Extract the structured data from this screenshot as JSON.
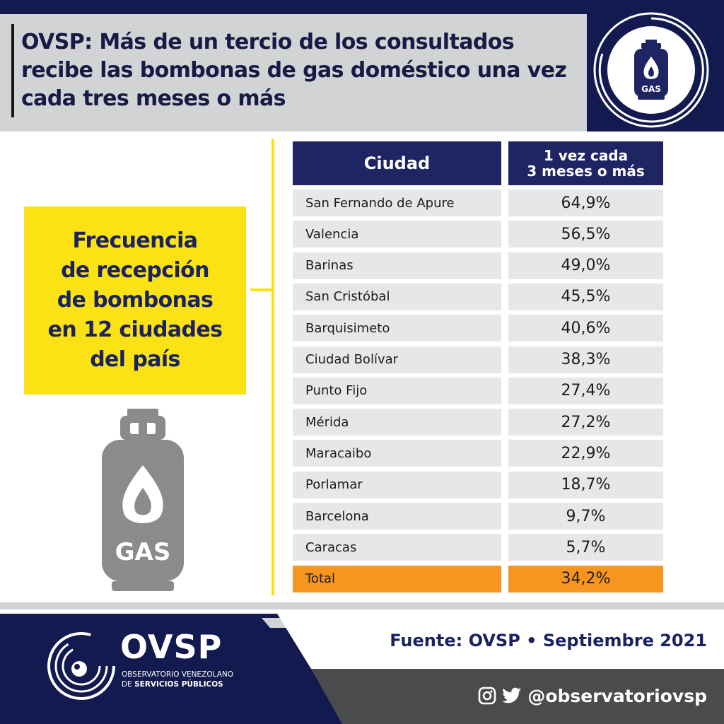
{
  "header": {
    "title": "OVSP: Más de un tercio de los consultados recibe las bombonas de gas doméstico una vez cada tres meses o más",
    "badge_label": "GAS"
  },
  "left_panel": {
    "box_text": "Frecuencia\nde recepción\nde bombonas\nen 12 ciudades\ndel país",
    "tank_label": "GAS"
  },
  "chart_data": {
    "type": "table",
    "columns": [
      "Ciudad",
      "1 vez cada\n3 meses o más"
    ],
    "rows": [
      {
        "city": "San Fernando de Apure",
        "value": "64,9%"
      },
      {
        "city": "Valencia",
        "value": "56,5%"
      },
      {
        "city": "Barinas",
        "value": "49,0%"
      },
      {
        "city": "San Cristóbal",
        "value": "45,5%"
      },
      {
        "city": "Barquisimeto",
        "value": "40,6%"
      },
      {
        "city": "Ciudad Bolívar",
        "value": "38,3%"
      },
      {
        "city": "Punto Fijo",
        "value": "27,4%"
      },
      {
        "city": "Mérida",
        "value": "27,2%"
      },
      {
        "city": "Maracaibo",
        "value": "22,9%"
      },
      {
        "city": "Porlamar",
        "value": "18,7%"
      },
      {
        "city": "Barcelona",
        "value": "9,7%"
      },
      {
        "city": "Caracas",
        "value": "5,7%"
      }
    ],
    "total": {
      "city": "Total",
      "value": "34,2%"
    }
  },
  "footer": {
    "source": "Fuente: OVSP  •  Septiembre 2021",
    "handle": "@observatoriovsp",
    "logo_name": "OVSP",
    "logo_sub_1": "OBSERVATORIO VENEZOLANO",
    "logo_sub_2_prefix": "DE",
    "logo_sub_2_strong": "SERVICIOS PÚBLICOS"
  },
  "colors": {
    "navy": "#131a4f",
    "table_header": "#1f2563",
    "accent_yellow": "#fbe214",
    "total_orange": "#f6951f",
    "row_gray": "#e6e7e8"
  },
  "icons": [
    "gas-cylinder-icon",
    "instagram-icon",
    "twitter-icon",
    "ovsp-logo-icon"
  ]
}
